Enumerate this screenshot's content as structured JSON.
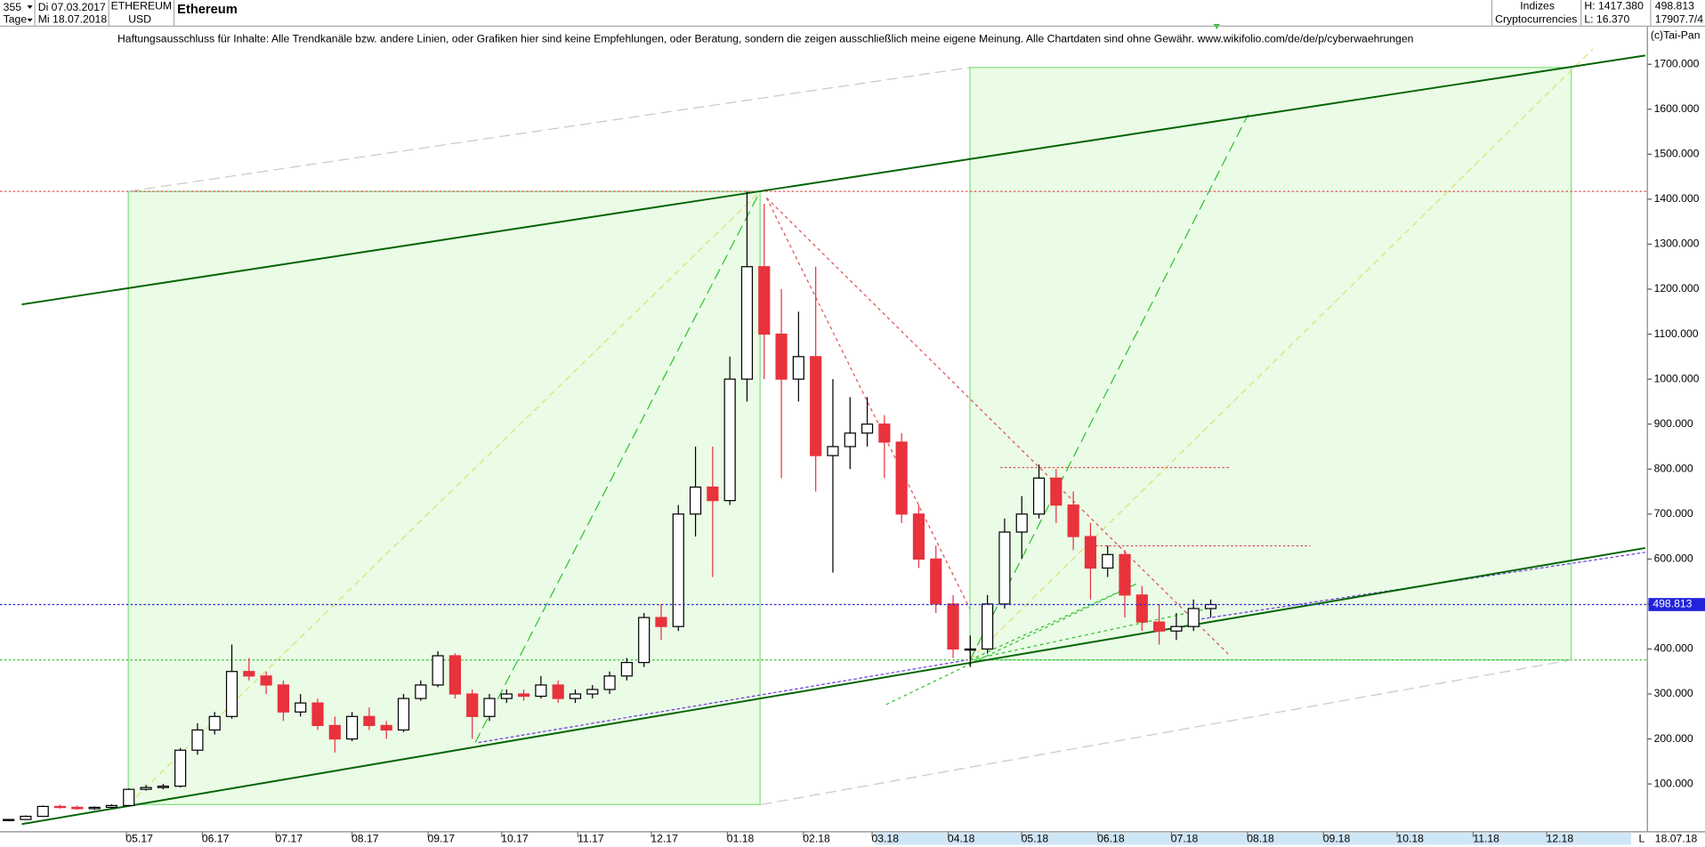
{
  "header": {
    "period": "355",
    "start": "Di 07.03.2017",
    "unit": "Tage",
    "end": "Mi 18.07.2018",
    "symbol": "ETHEREUM",
    "currency": "USD",
    "name": "Ethereum",
    "group": "Indizes",
    "market": "Cryptocurrencies",
    "high": "H: 1417.380",
    "low": "L: 16.370",
    "volume": "17907.7/4",
    "copyright": "(c)Tai-Pan",
    "disclaimer": "Haftungsausschluss für Inhalte: Alle Trendkanäle bzw. andere Linien, oder Grafiken hier sind keine Empfehlungen, oder Beratung, sondern die zeigen ausschließlich meine eigene Meinung. Alle Chartdaten sind ohne Gewähr.  www.wikifolio.com/de/de/p/cyberwaehrungen",
    "scale_mode": "L",
    "last_date": "18.07.18"
  },
  "chart_data": {
    "type": "candlestick",
    "title": "Ethereum",
    "last_price": 498.813,
    "x": [
      7,
      14,
      21,
      28,
      35,
      42,
      49,
      56,
      63,
      70,
      77,
      84,
      91,
      98,
      105,
      112,
      119,
      126,
      133,
      140,
      147,
      154,
      161,
      168,
      175,
      182,
      189,
      196,
      203,
      210,
      217,
      224,
      231,
      238,
      245,
      252,
      259,
      266,
      273,
      280,
      287,
      294,
      301,
      308,
      315,
      322,
      329,
      336,
      343,
      350,
      357,
      364,
      371,
      378,
      385,
      392,
      399,
      406,
      413,
      420,
      427,
      434,
      441,
      448,
      455,
      462,
      469,
      476,
      483,
      490,
      497
    ],
    "open": [
      19,
      21,
      28,
      50,
      48,
      45,
      48,
      52,
      88,
      92,
      95,
      175,
      220,
      250,
      350,
      340,
      320,
      260,
      280,
      230,
      200,
      250,
      230,
      220,
      290,
      320,
      385,
      300,
      250,
      290,
      300,
      295,
      320,
      290,
      300,
      310,
      340,
      370,
      470,
      450,
      700,
      760,
      730,
      1000,
      1250,
      1100,
      1000,
      1050,
      830,
      850,
      880,
      900,
      860,
      700,
      600,
      500,
      400,
      400,
      500,
      660,
      700,
      780,
      720,
      650,
      580,
      610,
      520,
      460,
      440,
      450,
      490
    ],
    "high": [
      22,
      30,
      52,
      54,
      52,
      50,
      55,
      90,
      98,
      100,
      180,
      235,
      260,
      410,
      380,
      350,
      330,
      300,
      290,
      250,
      260,
      270,
      240,
      300,
      330,
      395,
      390,
      310,
      300,
      310,
      310,
      340,
      330,
      310,
      320,
      350,
      380,
      480,
      500,
      720,
      850,
      850,
      1050,
      1417,
      1390,
      1200,
      1150,
      1250,
      1000,
      960,
      960,
      920,
      880,
      720,
      630,
      520,
      430,
      520,
      690,
      740,
      810,
      800,
      750,
      680,
      630,
      620,
      540,
      500,
      480,
      510,
      510
    ],
    "low": [
      17,
      20,
      27,
      45,
      43,
      42,
      46,
      52,
      85,
      88,
      92,
      165,
      210,
      245,
      330,
      300,
      240,
      250,
      220,
      170,
      195,
      220,
      200,
      215,
      285,
      315,
      290,
      200,
      240,
      280,
      285,
      290,
      280,
      280,
      290,
      300,
      330,
      360,
      420,
      440,
      650,
      560,
      720,
      950,
      1000,
      780,
      950,
      750,
      570,
      800,
      850,
      780,
      680,
      580,
      480,
      380,
      360,
      390,
      490,
      600,
      690,
      680,
      620,
      510,
      560,
      470,
      440,
      410,
      420,
      440,
      470
    ],
    "close": [
      21,
      28,
      50,
      48,
      45,
      48,
      52,
      88,
      92,
      95,
      175,
      220,
      250,
      350,
      340,
      320,
      260,
      280,
      230,
      200,
      250,
      230,
      220,
      290,
      320,
      385,
      300,
      250,
      290,
      300,
      295,
      320,
      290,
      300,
      310,
      340,
      370,
      470,
      450,
      700,
      760,
      730,
      1000,
      1250,
      1100,
      1000,
      1050,
      830,
      850,
      880,
      900,
      860,
      700,
      600,
      500,
      400,
      400,
      500,
      660,
      700,
      780,
      720,
      650,
      580,
      610,
      520,
      460,
      440,
      450,
      490,
      498.813
    ],
    "up_color": "#000000",
    "down_color": "#e8323c",
    "last_color": "#2222dd",
    "xlim": [
      3.5,
      675
    ],
    "ylim": [
      -6,
      1785
    ],
    "xticks": [
      {
        "value": 55,
        "label": "05.17"
      },
      {
        "value": 86,
        "label": "06.17"
      },
      {
        "value": 116,
        "label": "07.17"
      },
      {
        "value": 147,
        "label": "08.17"
      },
      {
        "value": 178,
        "label": "09.17"
      },
      {
        "value": 208,
        "label": "10.17"
      },
      {
        "value": 239,
        "label": "11.17"
      },
      {
        "value": 269,
        "label": "12.17"
      },
      {
        "value": 300,
        "label": "01.18"
      },
      {
        "value": 331,
        "label": "02.18"
      },
      {
        "value": 359,
        "label": "03.18"
      },
      {
        "value": 390,
        "label": "04.18"
      },
      {
        "value": 420,
        "label": "05.18"
      },
      {
        "value": 451,
        "label": "06.18"
      },
      {
        "value": 481,
        "label": "07.18"
      },
      {
        "value": 512,
        "label": "08.18"
      },
      {
        "value": 543,
        "label": "09.18"
      },
      {
        "value": 573,
        "label": "10.18"
      },
      {
        "value": 604,
        "label": "11.18"
      },
      {
        "value": 634,
        "label": "12.18"
      }
    ],
    "yticks": [
      {
        "value": 100,
        "label": "100.000"
      },
      {
        "value": 200,
        "label": "200.000"
      },
      {
        "value": 300,
        "label": "300.000"
      },
      {
        "value": 400,
        "label": "400.000"
      },
      {
        "value": 500,
        "label": "500.000"
      },
      {
        "value": 600,
        "label": "600.000"
      },
      {
        "value": 700,
        "label": "700.000"
      },
      {
        "value": 800,
        "label": "800.000"
      },
      {
        "value": 900,
        "label": "900.000"
      },
      {
        "value": 1000,
        "label": "1000.000"
      },
      {
        "value": 1100,
        "label": "1100.000"
      },
      {
        "value": 1200,
        "label": "1200.000"
      },
      {
        "value": 1300,
        "label": "1300.000"
      },
      {
        "value": 1400,
        "label": "1400.000"
      },
      {
        "value": 1500,
        "label": "1500.000"
      },
      {
        "value": 1600,
        "label": "1600.000"
      },
      {
        "value": 1700,
        "label": "1700.000"
      }
    ]
  }
}
